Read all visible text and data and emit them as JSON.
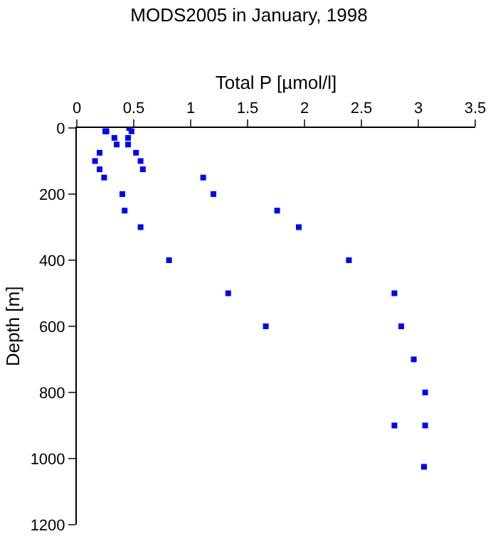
{
  "chart_data": {
    "type": "scatter",
    "title": "MODS2005 in January, 1998",
    "xlabel": "Total P [µmol/l]",
    "ylabel": "Depth [m]",
    "x": [
      0.46,
      0.26,
      0.25,
      0.48,
      0.33,
      0.45,
      0.35,
      0.45,
      0.2,
      0.52,
      0.16,
      0.56,
      0.2,
      0.58,
      0.24,
      1.11,
      0.4,
      1.2,
      0.42,
      1.76,
      0.56,
      1.95,
      0.81,
      2.39,
      1.33,
      2.79,
      1.66,
      2.85,
      2.96,
      3.06,
      2.79,
      3.06,
      3.05
    ],
    "series": [
      {
        "color": "#0000ff",
        "values": [
          0,
          10,
          10,
          10,
          30,
          30,
          50,
          50,
          75,
          75,
          100,
          100,
          125,
          125,
          150,
          150,
          200,
          200,
          250,
          250,
          300,
          300,
          400,
          400,
          500,
          500,
          600,
          600,
          700,
          800,
          900,
          900,
          1025
        ]
      }
    ],
    "xlim": [
      0,
      3.5
    ],
    "xticks": [
      0,
      0.5,
      1,
      1.5,
      2,
      2.5,
      3,
      3.5
    ],
    "ylim": [
      1200,
      0
    ],
    "yticks": [
      0,
      200,
      400,
      600,
      800,
      1000,
      1200
    ],
    "marker": "square"
  }
}
